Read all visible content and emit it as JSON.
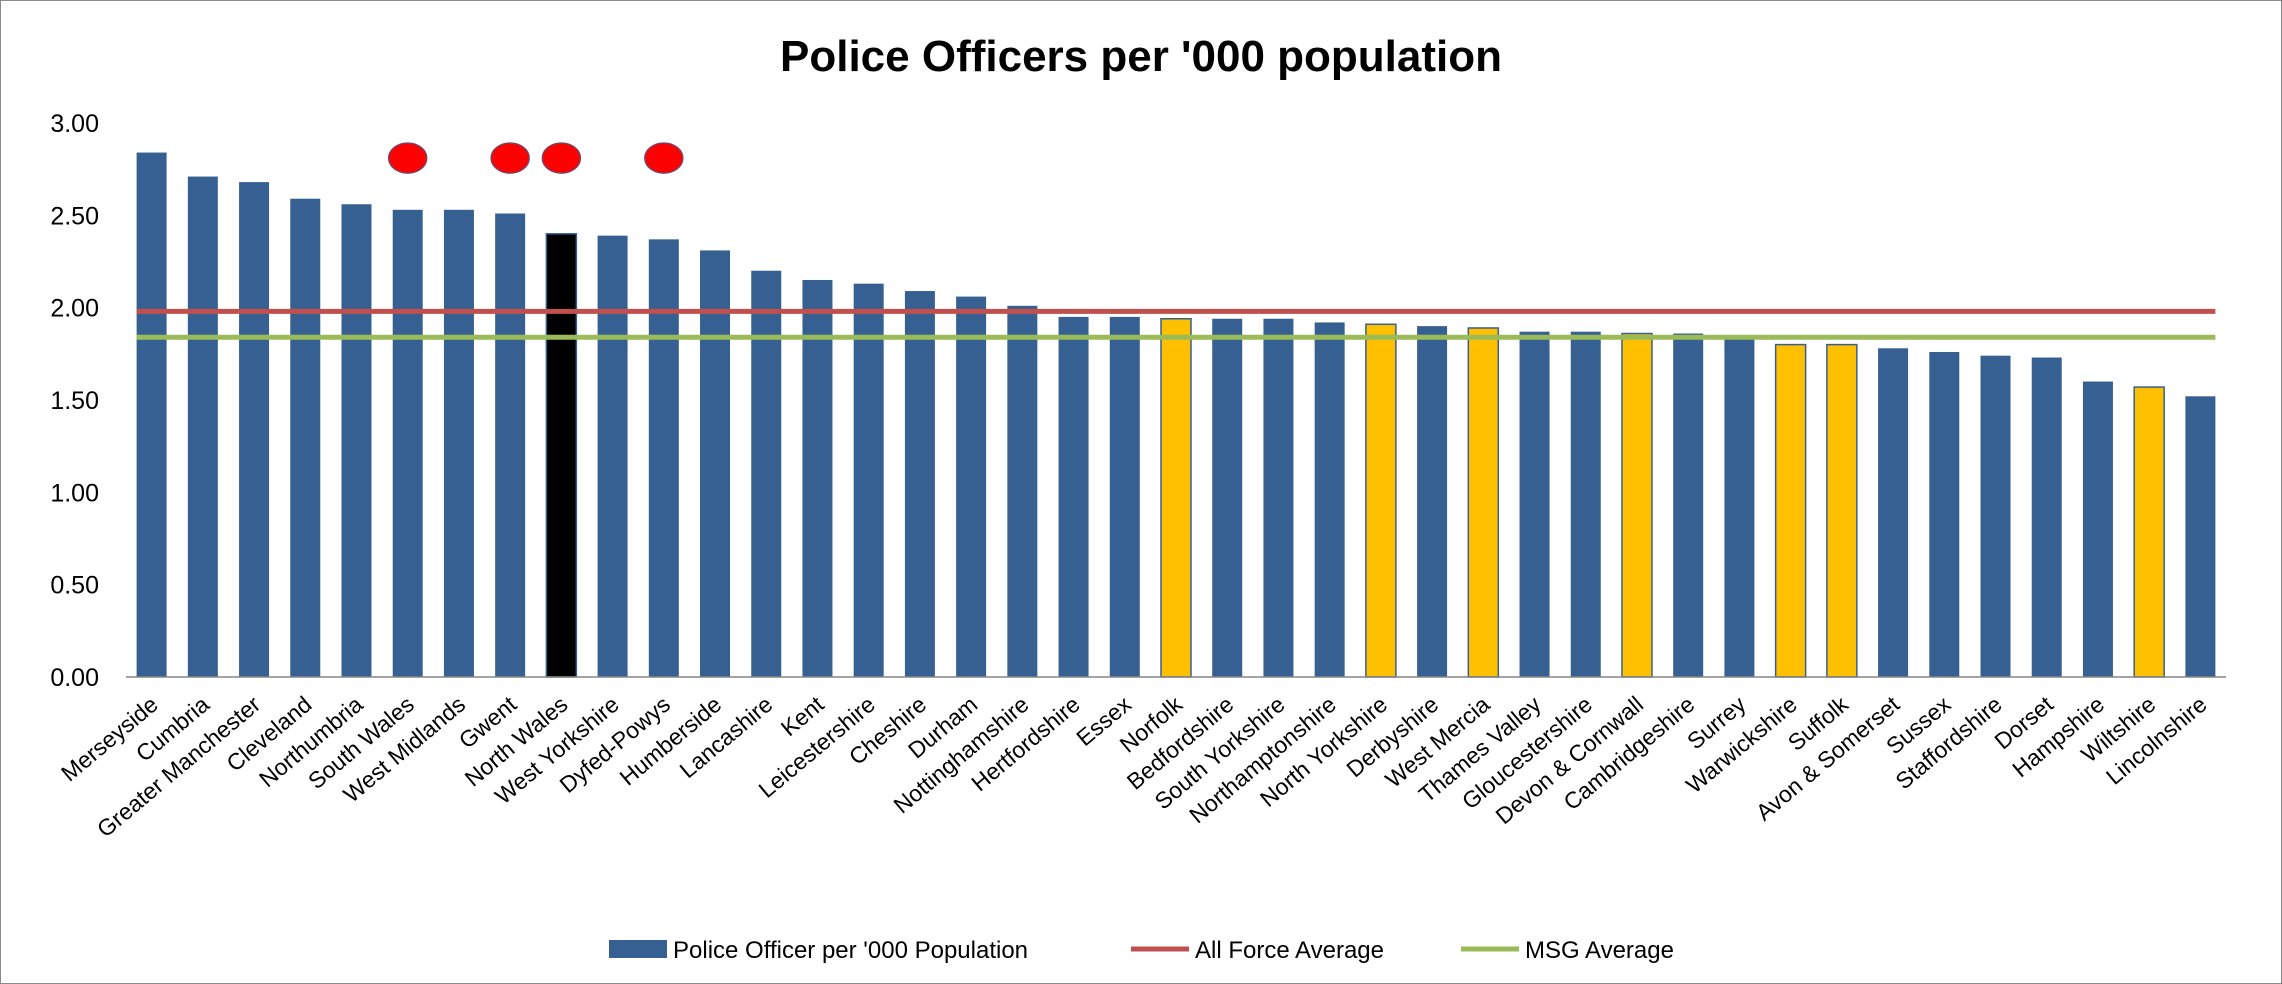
{
  "chart_data": {
    "type": "bar",
    "title": "Police Officers per '000 population",
    "xlabel": "",
    "ylabel": "",
    "ylim": [
      0,
      3
    ],
    "yticks": [
      "0.00",
      "0.50",
      "1.00",
      "1.50",
      "2.00",
      "2.50",
      "3.00"
    ],
    "grid": false,
    "legend_position": "bottom",
    "categories": [
      "Merseyside",
      "Cumbria",
      "Greater Manchester",
      "Cleveland",
      "Northumbria",
      "South Wales",
      "West Midlands",
      "Gwent",
      "North Wales",
      "West Yorkshire",
      "Dyfed-Powys",
      "Humberside",
      "Lancashire",
      "Kent",
      "Leicestershire",
      "Cheshire",
      "Durham",
      "Nottinghamshire",
      "Hertfordshire",
      "Essex",
      "Norfolk",
      "Bedfordshire",
      "South Yorkshire",
      "Northamptonshire",
      "North Yorkshire",
      "Derbyshire",
      "West Mercia",
      "Thames Valley",
      "Gloucestershire",
      "Devon & Cornwall",
      "Cambridgeshire",
      "Surrey",
      "Warwickshire",
      "Suffolk",
      "Avon & Somerset",
      "Sussex",
      "Staffordshire",
      "Dorset",
      "Hampshire",
      "Wiltshire",
      "Lincolnshire"
    ],
    "series": [
      {
        "name": "Police Officer per '000 Population",
        "color": "#376092",
        "values": [
          2.84,
          2.71,
          2.68,
          2.59,
          2.56,
          2.53,
          2.53,
          2.51,
          2.4,
          2.39,
          2.37,
          2.31,
          2.2,
          2.15,
          2.13,
          2.09,
          2.06,
          2.01,
          1.95,
          1.95,
          1.94,
          1.94,
          1.94,
          1.92,
          1.91,
          1.9,
          1.89,
          1.87,
          1.87,
          1.86,
          1.86,
          1.83,
          1.8,
          1.8,
          1.78,
          1.76,
          1.74,
          1.73,
          1.6,
          1.57,
          1.52
        ]
      },
      {
        "name": "All Force Average",
        "type": "line",
        "color": "#c0504d",
        "value": 1.98
      },
      {
        "name": "MSG Average",
        "type": "line",
        "color": "#9bbb59",
        "value": 1.84
      }
    ],
    "highlighted_bars": {
      "North Wales": "#000000",
      "Norfolk": "#ffc000",
      "North Yorkshire": "#ffc000",
      "West Mercia": "#ffc000",
      "Devon & Cornwall": "#ffc000",
      "Warwickshire": "#ffc000",
      "Suffolk": "#ffc000",
      "Wiltshire": "#ffc000"
    },
    "markers": {
      "shape": "red-oval-icon",
      "color": "#ff0000",
      "categories": [
        "South Wales",
        "Gwent",
        "North Wales",
        "Dyfed-Powys"
      ],
      "value": 2.81
    }
  }
}
